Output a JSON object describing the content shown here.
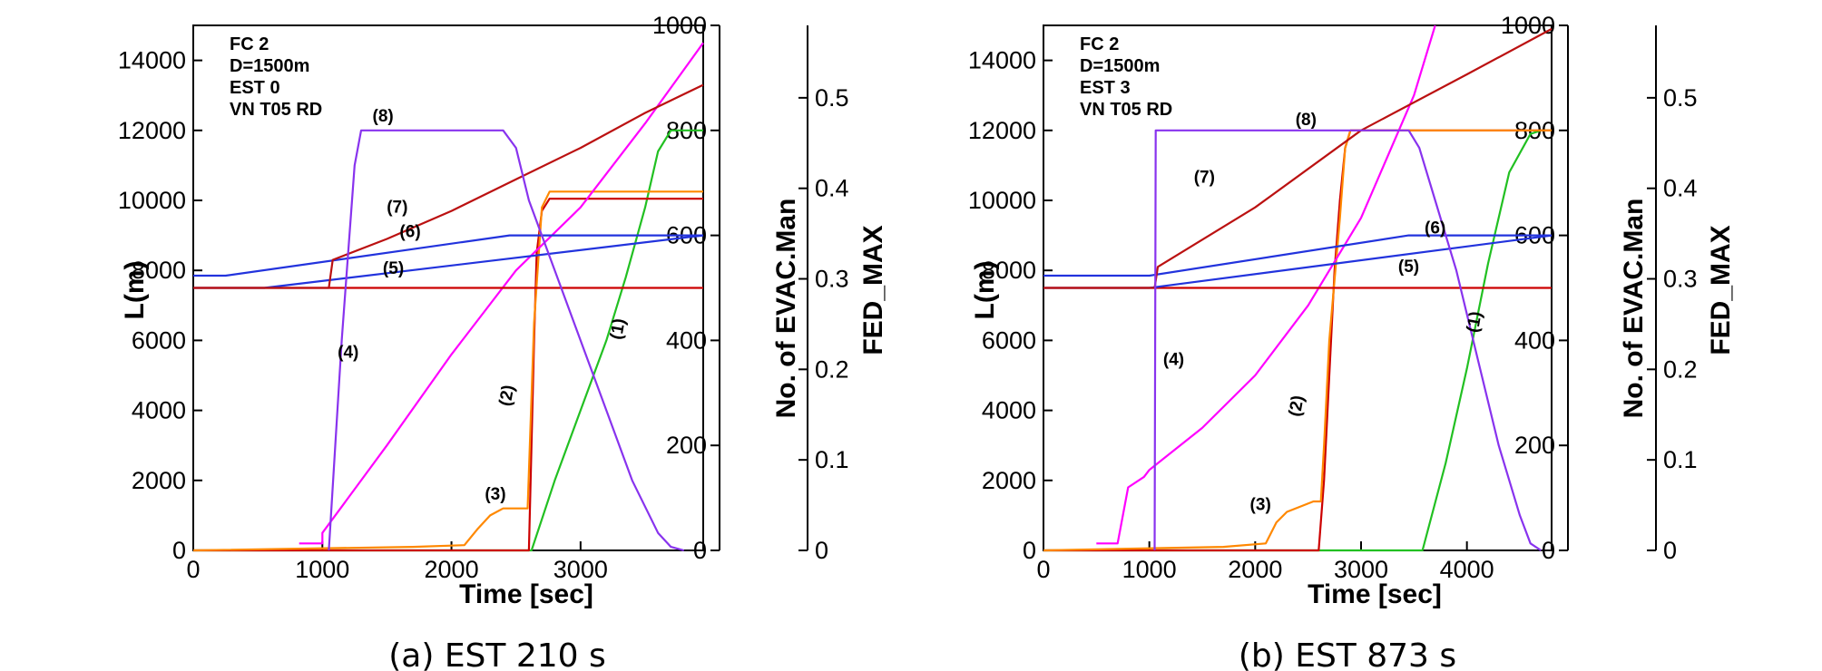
{
  "colors": {
    "s1": "#22c022",
    "s2": "#cc0000",
    "s3": "#ff8800",
    "s4": "#ff00ff",
    "s5": "#cc0000",
    "s6": "#2233dd",
    "s7": "#bb1111",
    "s8": "#8833ee"
  },
  "chart_data": [
    {
      "type": "line",
      "caption": "(a) EST 210 s",
      "annotation": [
        "FC 2",
        "D=1500m",
        "EST 0",
        "VN T05 RD"
      ],
      "xlabel": "Time [sec]",
      "ylabel_left": "L(m)",
      "ylabel_right1": "No. of EVAC.Man",
      "ylabel_right2": "FED_MAX",
      "xlim": [
        0,
        3950
      ],
      "ylim_left": [
        0,
        15000
      ],
      "ylim_right1": [
        0,
        1000
      ],
      "ylim_right2": [
        0,
        0.58
      ],
      "x_ticks": [
        "0",
        "1000",
        "2000",
        "3000"
      ],
      "y_left_ticks": [
        "0",
        "2000",
        "4000",
        "6000",
        "8000",
        "10000",
        "12000",
        "14000"
      ],
      "y_right1_ticks": [
        "0",
        "200",
        "400",
        "600",
        "800",
        "1000"
      ],
      "y_right2_ticks": [
        "0",
        "0.1",
        "0.2",
        "0.3",
        "0.4",
        "0.5"
      ],
      "series": [
        {
          "name": "(1)",
          "axis": "L",
          "x": [
            0,
            2620,
            2800,
            3000,
            3200,
            3350,
            3500,
            3600,
            3700,
            3950
          ],
          "y": [
            0,
            0,
            2000,
            4000,
            6000,
            7800,
            9800,
            11400,
            12000,
            12000
          ]
        },
        {
          "name": "(2)",
          "axis": "L",
          "x": [
            0,
            2600,
            2640,
            2660,
            2700,
            2760,
            3950
          ],
          "y": [
            0,
            0,
            6000,
            8500,
            9700,
            10050,
            10050
          ]
        },
        {
          "name": "(3)",
          "axis": "L",
          "x": [
            0,
            1700,
            2100,
            2200,
            2300,
            2400,
            2590,
            2640,
            2700,
            2760,
            3950
          ],
          "y": [
            0,
            100,
            150,
            600,
            1000,
            1200,
            1200,
            6500,
            9800,
            10250,
            10250
          ]
        },
        {
          "name": "(4)",
          "axis": "L",
          "x": [
            820,
            1000,
            1000,
            1500,
            2000,
            2500,
            3000,
            3500,
            3950
          ],
          "y": [
            200,
            200,
            500,
            3000,
            5600,
            8000,
            9800,
            12200,
            14500
          ]
        },
        {
          "name": "(5)",
          "axis": "L",
          "x": [
            0,
            3950
          ],
          "y": [
            7500,
            7500
          ]
        },
        {
          "name": "(6)",
          "axis": "L",
          "x": [
            0,
            250,
            2450,
            3950
          ],
          "y": [
            7850,
            7850,
            9000,
            9000
          ]
        },
        {
          "name": "(6)",
          "axis": "L",
          "x": [
            0,
            550,
            3950
          ],
          "y": [
            7500,
            7500,
            9000
          ]
        },
        {
          "name": "(7)",
          "axis": "L",
          "x": [
            0,
            1050,
            1080,
            1500,
            2000,
            2500,
            3000,
            3500,
            3950
          ],
          "y": [
            7500,
            7500,
            8300,
            8900,
            9700,
            10600,
            11500,
            12500,
            13300
          ]
        },
        {
          "name": "(8)",
          "axis": "L",
          "x": [
            1050,
            1150,
            1250,
            1300,
            2400,
            2500,
            2600,
            2800,
            3000,
            3200,
            3400,
            3600,
            3700,
            3800
          ],
          "y": [
            0,
            6000,
            11000,
            12000,
            12000,
            11500,
            10000,
            8000,
            6000,
            4000,
            2000,
            500,
            100,
            0
          ]
        }
      ]
    },
    {
      "type": "line",
      "caption": "(b) EST 873 s",
      "annotation": [
        "FC 2",
        "D=1500m",
        "EST 3",
        "VN T05 RD"
      ],
      "xlabel": "Time [sec]",
      "ylabel_left": "L(m)",
      "ylabel_right1": "No. of EVAC.Man",
      "ylabel_right2": "FED_MAX",
      "xlim": [
        0,
        4800
      ],
      "ylim_left": [
        0,
        15000
      ],
      "ylim_right1": [
        0,
        1000
      ],
      "ylim_right2": [
        0,
        0.58
      ],
      "x_ticks": [
        "0",
        "1000",
        "2000",
        "3000",
        "4000"
      ],
      "y_left_ticks": [
        "0",
        "2000",
        "4000",
        "6000",
        "8000",
        "10000",
        "12000",
        "14000"
      ],
      "y_right1_ticks": [
        "0",
        "200",
        "400",
        "600",
        "800",
        "1000"
      ],
      "y_right2_ticks": [
        "0",
        "0.1",
        "0.2",
        "0.3",
        "0.4",
        "0.5"
      ],
      "series": [
        {
          "name": "(1)",
          "axis": "L",
          "x": [
            0,
            3580,
            3800,
            4000,
            4200,
            4400,
            4600,
            4700,
            4800
          ],
          "y": [
            0,
            0,
            2500,
            5200,
            8200,
            10800,
            11900,
            12000,
            12000
          ]
        },
        {
          "name": "(2)",
          "axis": "L",
          "x": [
            0,
            2600,
            2650,
            2700,
            2750,
            2800,
            2850,
            2900,
            4800
          ],
          "y": [
            0,
            0,
            2000,
            5000,
            8000,
            10000,
            11500,
            12000,
            12000
          ]
        },
        {
          "name": "(3)",
          "axis": "L",
          "x": [
            0,
            1700,
            2100,
            2200,
            2300,
            2550,
            2620,
            2650,
            2700,
            2800,
            2850,
            2900,
            4800
          ],
          "y": [
            0,
            100,
            200,
            800,
            1100,
            1400,
            1400,
            3000,
            6000,
            9500,
            11500,
            12000,
            12000
          ]
        },
        {
          "name": "(4)",
          "axis": "L",
          "x": [
            500,
            700,
            800,
            950,
            1000,
            1500,
            2000,
            2500,
            3000,
            3500,
            3700
          ],
          "y": [
            200,
            200,
            1800,
            2100,
            2300,
            3500,
            5000,
            7000,
            9500,
            13000,
            15000
          ]
        },
        {
          "name": "(5)",
          "axis": "L",
          "x": [
            0,
            4800
          ],
          "y": [
            7500,
            7500
          ]
        },
        {
          "name": "(6)",
          "axis": "L",
          "x": [
            0,
            1000,
            3450,
            4800
          ],
          "y": [
            7850,
            7850,
            9000,
            9000
          ]
        },
        {
          "name": "(6)",
          "axis": "L",
          "x": [
            0,
            1000,
            4800
          ],
          "y": [
            7500,
            7500,
            9000
          ]
        },
        {
          "name": "(7)",
          "axis": "L",
          "x": [
            0,
            1050,
            1080,
            2000,
            3000,
            4000,
            4800
          ],
          "y": [
            7500,
            7500,
            8100,
            9800,
            12000,
            13600,
            14900
          ]
        },
        {
          "name": "(8)",
          "axis": "L",
          "x": [
            1050,
            1060,
            3450,
            3550,
            3700,
            3900,
            4100,
            4300,
            4500,
            4600,
            4700
          ],
          "y": [
            0,
            12000,
            12000,
            11500,
            10000,
            8000,
            5500,
            3000,
            1000,
            200,
            0
          ]
        }
      ],
      "curve_labels": [
        {
          "text": "(1)",
          "x": 4120,
          "y": 6500
        },
        {
          "text": "(2)",
          "x": 2440,
          "y": 4100
        },
        {
          "text": "(3)",
          "x": 2050,
          "y": 1150
        },
        {
          "text": "(4)",
          "x": 1230,
          "y": 5300
        },
        {
          "text": "(5)",
          "x": 3450,
          "y": 7950
        },
        {
          "text": "(6)",
          "x": 3700,
          "y": 9050
        },
        {
          "text": "(7)",
          "x": 1520,
          "y": 10500
        },
        {
          "text": "(8)",
          "x": 2480,
          "y": 12150
        }
      ]
    }
  ],
  "curve_labels_a": [
    {
      "text": "(1)",
      "x": 3330,
      "y": 6300
    },
    {
      "text": "(2)",
      "x": 2470,
      "y": 4400
    },
    {
      "text": "(3)",
      "x": 2340,
      "y": 1450
    },
    {
      "text": "(4)",
      "x": 1200,
      "y": 5500
    },
    {
      "text": "(5)",
      "x": 1550,
      "y": 7900
    },
    {
      "text": "(6)",
      "x": 1680,
      "y": 8950
    },
    {
      "text": "(7)",
      "x": 1580,
      "y": 9650
    },
    {
      "text": "(8)",
      "x": 1470,
      "y": 12250
    }
  ]
}
